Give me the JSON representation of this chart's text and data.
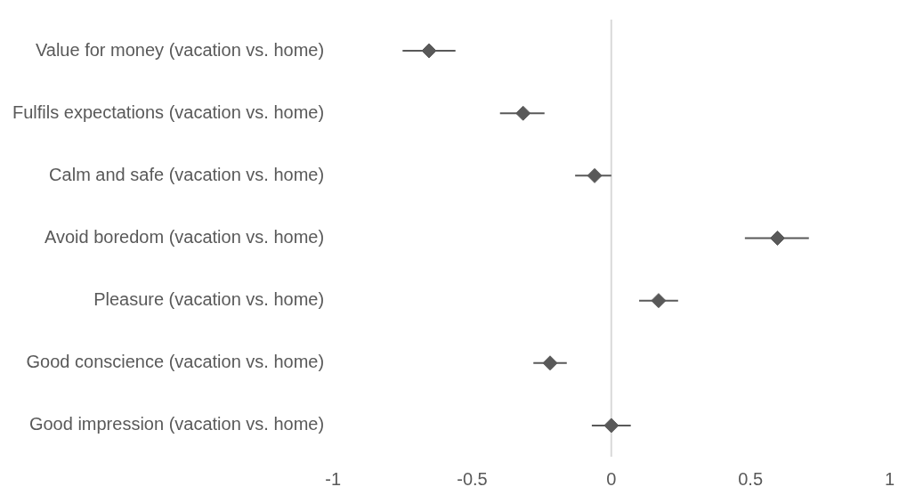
{
  "chart_data": {
    "type": "scatter",
    "orientation": "horizontal",
    "marker": "diamond",
    "grid": false,
    "legend": false,
    "categories": [
      "Value for money (vacation vs. home)",
      "Fulfils expectations (vacation vs. home)",
      "Calm and safe (vacation vs. home)",
      "Avoid boredom (vacation vs. home)",
      "Pleasure (vacation vs. home)",
      "Good conscience (vacation vs. home)",
      "Good impression (vacation vs. home)"
    ],
    "values": [
      -0.655,
      -0.317,
      -0.06,
      0.597,
      0.17,
      -0.22,
      0.0
    ],
    "errors": [
      [
        -0.75,
        -0.56
      ],
      [
        -0.4,
        -0.24
      ],
      [
        -0.13,
        0.0
      ],
      [
        0.48,
        0.71
      ],
      [
        0.1,
        0.24
      ],
      [
        -0.28,
        -0.16
      ],
      [
        -0.07,
        0.07
      ]
    ],
    "color": "#595959",
    "xlim": [
      -1,
      1
    ],
    "xticks": [
      -1,
      -0.5,
      0,
      0.5,
      1
    ],
    "ref_lines": [
      {
        "axis": "x",
        "value": 0,
        "color": "#d9d9d9"
      }
    ]
  }
}
